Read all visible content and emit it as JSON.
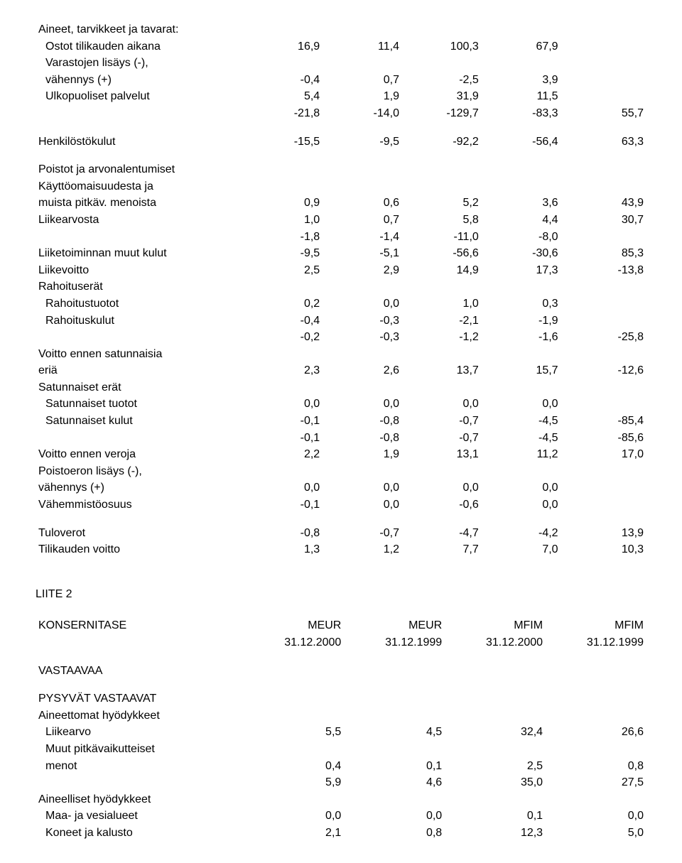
{
  "fonts": {
    "base_family": "Arial",
    "base_size_pt": 12
  },
  "colors": {
    "text": "#000000",
    "background": "#ffffff"
  },
  "table1": {
    "cols": 5,
    "rows": [
      {
        "label": "Aineet, tarvikkeet ja tavarat:",
        "indent": 0,
        "vals": [
          "",
          "",
          "",
          "",
          ""
        ]
      },
      {
        "label": "Ostot tilikauden aikana",
        "indent": 1,
        "vals": [
          "16,9",
          "11,4",
          "100,3",
          "67,9",
          ""
        ]
      },
      {
        "label": "Varastojen lisäys (-),",
        "indent": 1,
        "vals": [
          "",
          "",
          "",
          "",
          ""
        ]
      },
      {
        "label": "vähennys (+)",
        "indent": 1,
        "vals": [
          "-0,4",
          "0,7",
          "-2,5",
          "3,9",
          ""
        ]
      },
      {
        "label": "Ulkopuoliset palvelut",
        "indent": 1,
        "vals": [
          "5,4",
          "1,9",
          "31,9",
          "11,5",
          ""
        ]
      },
      {
        "label": "",
        "indent": 0,
        "vals": [
          "-21,8",
          "-14,0",
          "-129,7",
          "-83,3",
          "55,7"
        ]
      },
      {
        "spacer": true
      },
      {
        "label": "Henkilöstökulut",
        "indent": 0,
        "vals": [
          "-15,5",
          "-9,5",
          "-92,2",
          "-56,4",
          "63,3"
        ]
      },
      {
        "spacer": true
      },
      {
        "label": "Poistot ja arvonalentumiset",
        "indent": 0,
        "vals": [
          "",
          "",
          "",
          "",
          ""
        ]
      },
      {
        "label": "Käyttöomaisuudesta ja",
        "indent": 0,
        "vals": [
          "",
          "",
          "",
          "",
          ""
        ]
      },
      {
        "label": "muista pitkäv. menoista",
        "indent": 0,
        "vals": [
          "0,9",
          "0,6",
          "5,2",
          "3,6",
          "43,9"
        ]
      },
      {
        "label": "Liikearvosta",
        "indent": 0,
        "vals": [
          "1,0",
          "0,7",
          "5,8",
          "4,4",
          "30,7"
        ]
      },
      {
        "label": "",
        "indent": 0,
        "vals": [
          "-1,8",
          "-1,4",
          "-11,0",
          "-8,0",
          ""
        ]
      },
      {
        "label": "Liiketoiminnan muut kulut",
        "indent": 0,
        "vals": [
          "-9,5",
          "-5,1",
          "-56,6",
          "-30,6",
          "85,3"
        ]
      },
      {
        "label": "Liikevoitto",
        "indent": 0,
        "vals": [
          "2,5",
          "2,9",
          "14,9",
          "17,3",
          "-13,8"
        ]
      },
      {
        "label": "Rahoituserät",
        "indent": 0,
        "vals": [
          "",
          "",
          "",
          "",
          ""
        ]
      },
      {
        "label": "Rahoitustuotot",
        "indent": 1,
        "vals": [
          "0,2",
          "0,0",
          "1,0",
          "0,3",
          ""
        ]
      },
      {
        "label": "Rahoituskulut",
        "indent": 1,
        "vals": [
          "-0,4",
          "-0,3",
          "-2,1",
          "-1,9",
          ""
        ]
      },
      {
        "label": "",
        "indent": 0,
        "vals": [
          "-0,2",
          "-0,3",
          "-1,2",
          "-1,6",
          "-25,8"
        ]
      },
      {
        "label": "Voitto ennen satunnaisia",
        "indent": 0,
        "vals": [
          "",
          "",
          "",
          "",
          ""
        ]
      },
      {
        "label": "eriä",
        "indent": 0,
        "vals": [
          "2,3",
          "2,6",
          "13,7",
          "15,7",
          "-12,6"
        ]
      },
      {
        "label": "Satunnaiset erät",
        "indent": 0,
        "vals": [
          "",
          "",
          "",
          "",
          ""
        ]
      },
      {
        "label": "Satunnaiset tuotot",
        "indent": 1,
        "vals": [
          "0,0",
          "0,0",
          "0,0",
          "0,0",
          ""
        ]
      },
      {
        "label": "Satunnaiset kulut",
        "indent": 1,
        "vals": [
          "-0,1",
          "-0,8",
          "-0,7",
          "-4,5",
          "-85,4"
        ]
      },
      {
        "label": "",
        "indent": 0,
        "vals": [
          "-0,1",
          "-0,8",
          "-0,7",
          "-4,5",
          "-85,6"
        ]
      },
      {
        "label": "Voitto ennen veroja",
        "indent": 0,
        "vals": [
          "2,2",
          "1,9",
          "13,1",
          "11,2",
          "17,0"
        ]
      },
      {
        "label": "Poistoeron lisäys (-),",
        "indent": 0,
        "vals": [
          "",
          "",
          "",
          "",
          ""
        ]
      },
      {
        "label": "vähennys (+)",
        "indent": 0,
        "vals": [
          "0,0",
          "0,0",
          "0,0",
          "0,0",
          ""
        ]
      },
      {
        "label": "Vähemmistöosuus",
        "indent": 0,
        "vals": [
          "-0,1",
          "0,0",
          "-0,6",
          "0,0",
          ""
        ]
      },
      {
        "spacer": true
      },
      {
        "label": "Tuloverot",
        "indent": 0,
        "vals": [
          "-0,8",
          "-0,7",
          "-4,7",
          "-4,2",
          "13,9"
        ]
      },
      {
        "label": "Tilikauden voitto",
        "indent": 0,
        "vals": [
          "1,3",
          "1,2",
          "7,7",
          "7,0",
          "10,3"
        ]
      }
    ]
  },
  "section2": {
    "heading": "LIITE 2",
    "title": "KONSERNITASE",
    "col_headers_top": [
      "MEUR",
      "MEUR",
      "MFIM",
      "MFIM"
    ],
    "col_headers_bottom": [
      "31.12.2000",
      "31.12.1999",
      "31.12.2000",
      "31.12.1999"
    ],
    "subheading": "VASTAAVAA",
    "rows": [
      {
        "label": "PYSYVÄT VASTAAVAT",
        "indent": 0,
        "vals": [
          "",
          "",
          "",
          ""
        ]
      },
      {
        "label": "Aineettomat hyödykkeet",
        "indent": 0,
        "vals": [
          "",
          "",
          "",
          ""
        ]
      },
      {
        "label": "Liikearvo",
        "indent": 1,
        "vals": [
          "5,5",
          "4,5",
          "32,4",
          "26,6"
        ]
      },
      {
        "label": "Muut pitkävaikutteiset",
        "indent": 1,
        "vals": [
          "",
          "",
          "",
          ""
        ]
      },
      {
        "label": "menot",
        "indent": 1,
        "vals": [
          "0,4",
          "0,1",
          "2,5",
          "0,8"
        ]
      },
      {
        "label": "",
        "indent": 0,
        "vals": [
          "5,9",
          "4,6",
          "35,0",
          "27,5"
        ]
      },
      {
        "label": "Aineelliset hyödykkeet",
        "indent": 0,
        "vals": [
          "",
          "",
          "",
          ""
        ]
      },
      {
        "label": "Maa- ja vesialueet",
        "indent": 1,
        "vals": [
          "0,0",
          "0,0",
          "0,1",
          "0,0"
        ]
      },
      {
        "label": "Koneet ja kalusto",
        "indent": 1,
        "vals": [
          "2,1",
          "0,8",
          "12,3",
          "5,0"
        ]
      }
    ]
  }
}
